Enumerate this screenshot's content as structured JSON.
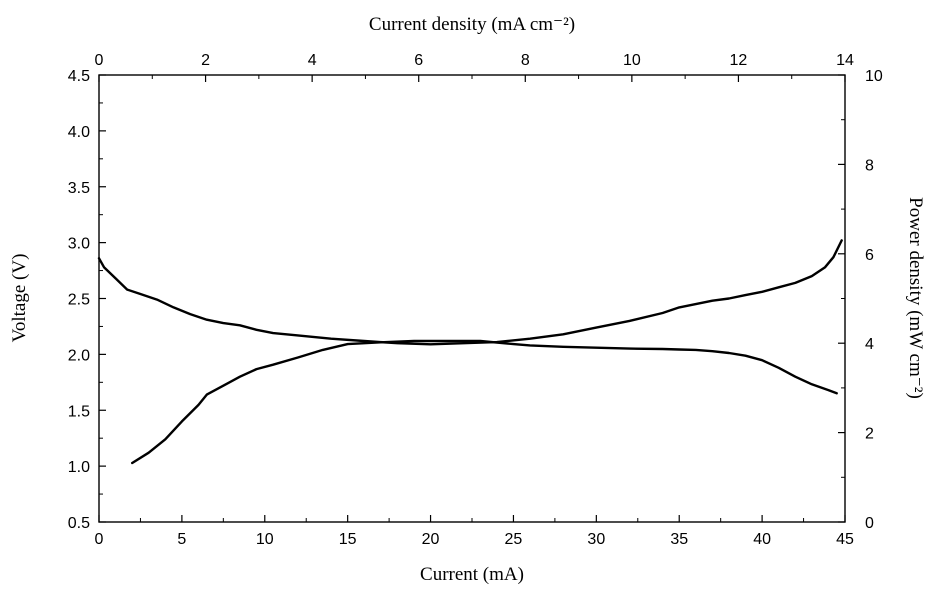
{
  "chart_data": {
    "type": "line",
    "title": "",
    "xlabel": "Current (mA)",
    "x2label": "Current density (mA cm⁻²)",
    "ylabel": "Voltage (V)",
    "y2label": "Power density (mW cm⁻²)",
    "xlim": [
      0,
      45
    ],
    "x2lim": [
      0,
      14
    ],
    "ylim": [
      0.5,
      4.5
    ],
    "y2lim": [
      0,
      10
    ],
    "xticks": [
      "0",
      "5",
      "10",
      "15",
      "20",
      "25",
      "30",
      "35",
      "40",
      "45"
    ],
    "x2ticks": [
      "0",
      "2",
      "4",
      "6",
      "8",
      "10",
      "12",
      "14"
    ],
    "yticks": [
      "0.5",
      "1.0",
      "1.5",
      "2.0",
      "2.5",
      "3.0",
      "3.5",
      "4.0",
      "4.5"
    ],
    "y2ticks": [
      "0",
      "2",
      "4",
      "6",
      "8",
      "10"
    ],
    "grid": false,
    "line_color": "#000000",
    "series": [
      {
        "axis": "left",
        "x": [
          0,
          0.3,
          1,
          1.7,
          2.5,
          3.5,
          4.5,
          5.5,
          6.5,
          7.5,
          8.5,
          9.5,
          10.5,
          12,
          14,
          16,
          18,
          20,
          22,
          24,
          26,
          28,
          30,
          32,
          34,
          35,
          36,
          37,
          38,
          39,
          40,
          41,
          42,
          43,
          43.8,
          44.3,
          44.8
        ],
        "values": [
          2.86,
          2.78,
          2.68,
          2.58,
          2.54,
          2.49,
          2.42,
          2.36,
          2.31,
          2.28,
          2.26,
          2.22,
          2.19,
          2.17,
          2.14,
          2.12,
          2.1,
          2.09,
          2.1,
          2.11,
          2.14,
          2.18,
          2.24,
          2.3,
          2.37,
          2.42,
          2.45,
          2.48,
          2.5,
          2.53,
          2.56,
          2.6,
          2.64,
          2.7,
          2.78,
          2.87,
          3.02
        ]
      },
      {
        "axis": "right",
        "x": [
          2,
          3,
          4,
          5,
          6,
          6.5,
          7.5,
          8.5,
          9.5,
          10.5,
          12,
          13.5,
          15,
          17,
          19,
          21,
          23,
          25,
          26,
          28,
          30,
          32,
          34,
          35,
          36,
          37,
          38,
          39,
          40,
          41,
          42,
          43,
          44,
          44.5
        ],
        "values": [
          1.32,
          1.55,
          1.85,
          2.25,
          2.62,
          2.85,
          3.05,
          3.25,
          3.42,
          3.52,
          3.68,
          3.85,
          3.98,
          4.02,
          4.05,
          4.05,
          4.05,
          3.98,
          3.95,
          3.92,
          3.9,
          3.88,
          3.87,
          3.86,
          3.85,
          3.82,
          3.78,
          3.72,
          3.62,
          3.45,
          3.25,
          3.08,
          2.95,
          2.88
        ]
      }
    ]
  }
}
